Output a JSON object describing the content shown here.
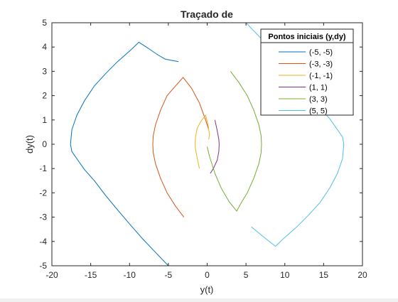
{
  "chart_data": {
    "type": "line",
    "title": "Traçado de",
    "xlabel": "y(t)",
    "ylabel": "dy(t)",
    "xlim": [
      -20,
      20
    ],
    "ylim": [
      -5,
      5
    ],
    "xticks": [
      -20,
      -15,
      -10,
      -5,
      0,
      5,
      10,
      15,
      20
    ],
    "yticks": [
      -5,
      -4,
      -3,
      -2,
      -1,
      0,
      1,
      2,
      3,
      4,
      5
    ],
    "grid": false,
    "legend": {
      "title": "Pontos iniciais (y,dy)",
      "location": "top-right"
    },
    "series": [
      {
        "name": "(-5, -5)",
        "color": "#0072BD",
        "x": [
          -5.0,
          -6.65,
          -8.29,
          -9.93,
          -11.54,
          -13.1,
          -14.53,
          -15.78,
          -16.78,
          -17.43,
          -17.6,
          -17.43,
          -16.78,
          -15.78,
          -14.53,
          -13.1,
          -11.54,
          -9.93,
          -8.8,
          -7.6,
          -6.45,
          -5.4,
          -3.7
        ],
        "y": [
          -5.0,
          -4.45,
          -3.9,
          -3.3,
          -2.7,
          -2.1,
          -1.5,
          -1.05,
          -0.6,
          -0.3,
          0.0,
          0.6,
          1.2,
          1.8,
          2.4,
          2.9,
          3.4,
          3.85,
          4.2,
          3.95,
          3.7,
          3.5,
          3.4
        ]
      },
      {
        "name": "(-3, -3)",
        "color": "#D95319",
        "x": [
          -3.0,
          -4.07,
          -5.16,
          -6.0,
          -6.65,
          -6.95,
          -7.0,
          -6.95,
          -6.65,
          -6.0,
          -5.16,
          -4.07,
          -3.1,
          -2.0,
          -1.0,
          -0.2,
          0.2
        ],
        "y": [
          -3.0,
          -2.55,
          -2.0,
          -1.4,
          -0.8,
          -0.35,
          0.0,
          0.35,
          0.8,
          1.4,
          2.0,
          2.4,
          2.75,
          2.3,
          1.7,
          1.0,
          0.6
        ]
      },
      {
        "name": "(-1, -1)",
        "color": "#EDB120",
        "x": [
          -1.0,
          -1.3,
          -1.5,
          -1.55,
          -1.5,
          -1.3,
          -0.8,
          -0.2,
          0.1,
          0.3,
          0.2
        ],
        "y": [
          -1.0,
          -0.55,
          -0.2,
          0.0,
          0.3,
          0.65,
          0.95,
          1.2,
          0.8,
          0.4,
          0.2
        ]
      },
      {
        "name": "(1, 1)",
        "color": "#7E2F8E",
        "x": [
          1.0,
          1.3,
          1.5,
          1.55,
          1.5,
          1.3,
          0.8,
          0.4
        ],
        "y": [
          1.0,
          0.55,
          0.2,
          0.0,
          -0.3,
          -0.65,
          -1.0,
          -1.2
        ]
      },
      {
        "name": "(3, 3)",
        "color": "#77AC30",
        "x": [
          3.0,
          4.07,
          5.16,
          6.0,
          6.65,
          6.95,
          7.0,
          6.95,
          6.65,
          6.0,
          5.16,
          4.4,
          3.8,
          2.8,
          1.8,
          1.0,
          0.3,
          0.0
        ],
        "y": [
          3.0,
          2.55,
          2.0,
          1.4,
          0.8,
          0.35,
          0.0,
          -0.35,
          -0.8,
          -1.4,
          -2.0,
          -2.4,
          -2.75,
          -2.35,
          -1.8,
          -1.2,
          -0.5,
          -0.1
        ]
      },
      {
        "name": "(5, 5)",
        "color": "#4DBEEE",
        "x": [
          5.0,
          6.65,
          8.29,
          9.93,
          11.54,
          13.1,
          14.53,
          15.78,
          16.78,
          17.43,
          17.6,
          17.43,
          16.78,
          15.78,
          14.53,
          13.1,
          11.54,
          9.93,
          8.8,
          7.6,
          6.45,
          5.7
        ],
        "y": [
          5.0,
          4.45,
          3.9,
          3.3,
          2.7,
          2.1,
          1.5,
          1.05,
          0.6,
          0.3,
          0.0,
          -0.6,
          -1.2,
          -1.8,
          -2.4,
          -2.9,
          -3.4,
          -3.85,
          -4.2,
          -3.9,
          -3.6,
          -3.4
        ]
      }
    ]
  }
}
